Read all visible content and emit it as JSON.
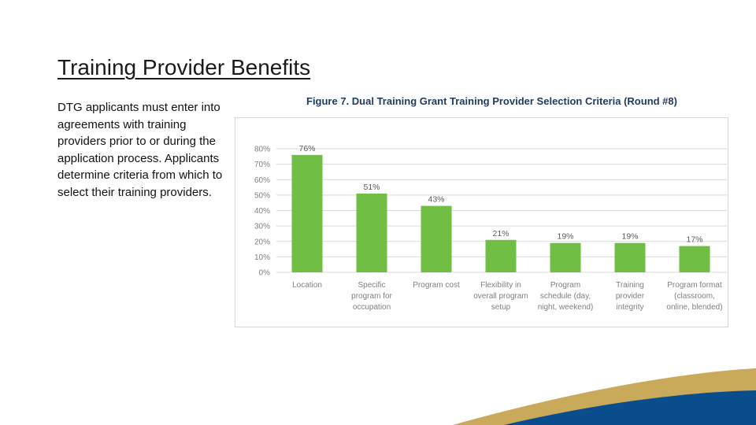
{
  "slide": {
    "title": "Training Provider Benefits",
    "body": "DTG applicants must enter into agreements with training providers prior to or during the application process. Applicants determine criteria from which to select their training providers."
  },
  "colors": {
    "bar": "#70bf44",
    "swoosh_gold": "#c9a95a",
    "swoosh_navy": "#0a4d8c"
  },
  "chart_data": {
    "type": "bar",
    "title": "Figure 7. Dual Training Grant Training Provider Selection Criteria (Round #8)",
    "categories": [
      [
        "Location"
      ],
      [
        "Specific",
        "program for",
        "occupation"
      ],
      [
        "Program cost"
      ],
      [
        "Flexibility in",
        "overall program",
        "setup"
      ],
      [
        "Program",
        "schedule (day,",
        "night, weekend)"
      ],
      [
        "Training",
        "provider",
        "integrity"
      ],
      [
        "Program format",
        "(classroom,",
        "online, blended)"
      ]
    ],
    "values": [
      76,
      51,
      43,
      21,
      19,
      19,
      17
    ],
    "value_labels": [
      "76%",
      "51%",
      "43%",
      "21%",
      "19%",
      "19%",
      "17%"
    ],
    "ylim": [
      0,
      80
    ],
    "yticks": [
      0,
      10,
      20,
      30,
      40,
      50,
      60,
      70,
      80
    ],
    "ytick_labels": [
      "0%",
      "10%",
      "20%",
      "30%",
      "40%",
      "50%",
      "60%",
      "70%",
      "80%"
    ],
    "grid": true,
    "xlabel": "",
    "ylabel": ""
  }
}
